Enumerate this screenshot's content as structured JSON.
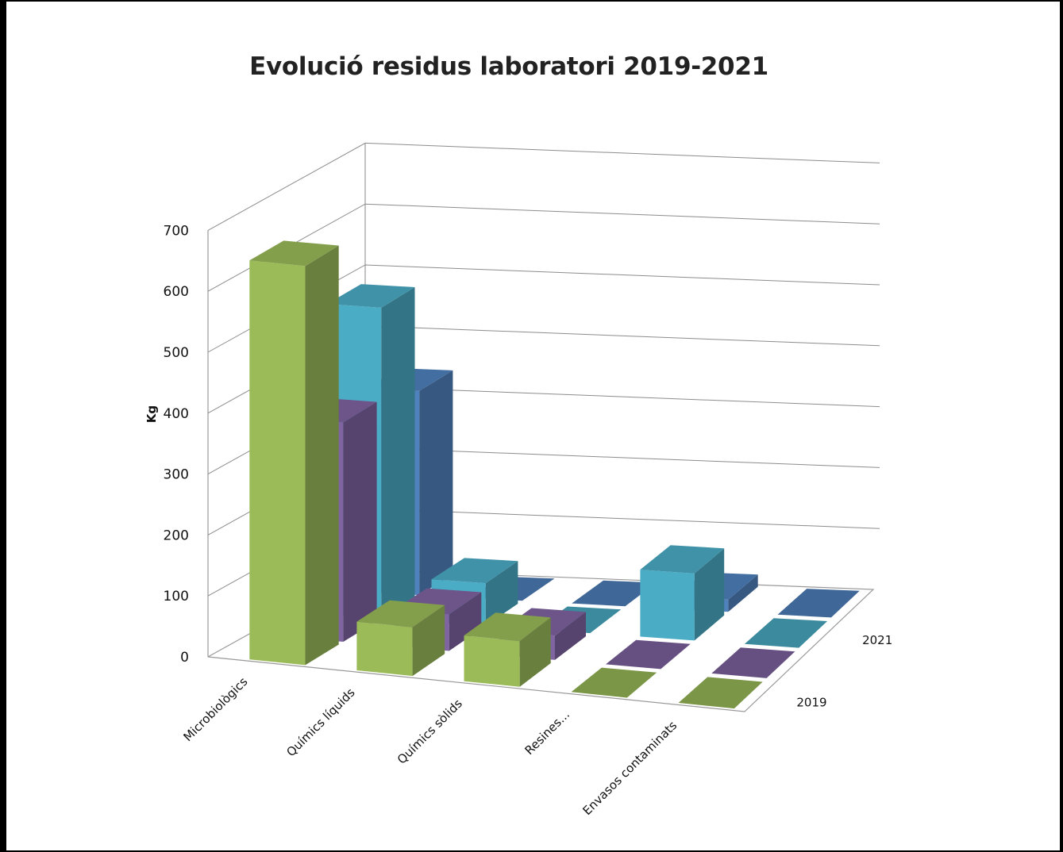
{
  "chart_data": {
    "type": "bar",
    "title": "Evolució residus laboratori 2019-2021",
    "ylabel": "Kg",
    "xlabel": "",
    "ylim": [
      0,
      700
    ],
    "yticks": [
      "0",
      "100",
      "200",
      "300",
      "400",
      "500",
      "600",
      "700"
    ],
    "grid": true,
    "categories": [
      "Microbiològics",
      "Químics líquids",
      "Químics sòlids",
      "Resines...",
      "Envasos contaminats"
    ],
    "depth_labels": [
      "2019",
      "2021"
    ],
    "series": [
      {
        "name": "2019",
        "values": [
          655,
          80,
          75,
          0,
          0
        ],
        "color": "#9bbb59"
      },
      {
        "name": "",
        "values": [
          360,
          60,
          40,
          0,
          0
        ],
        "color": "#8064a2"
      },
      {
        "name": "",
        "values": [
          510,
          70,
          0,
          110,
          0
        ],
        "color": "#4bacc6"
      },
      {
        "name": "2021",
        "values": [
          335,
          0,
          0,
          20,
          0
        ],
        "color": "#4f81bd"
      }
    ]
  }
}
